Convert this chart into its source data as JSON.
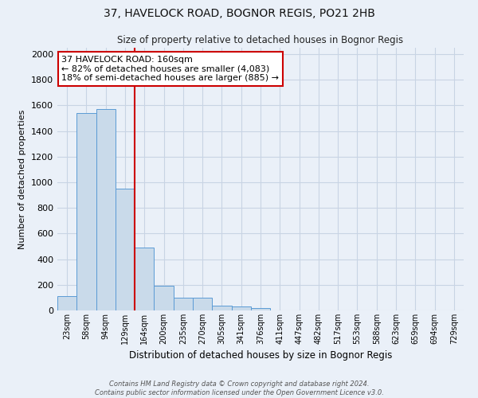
{
  "title_line1": "37, HAVELOCK ROAD, BOGNOR REGIS, PO21 2HB",
  "title_line2": "Size of property relative to detached houses in Bognor Regis",
  "xlabel": "Distribution of detached houses by size in Bognor Regis",
  "ylabel": "Number of detached properties",
  "footnote": "Contains HM Land Registry data © Crown copyright and database right 2024.\nContains public sector information licensed under the Open Government Licence v3.0.",
  "bin_labels": [
    "23sqm",
    "58sqm",
    "94sqm",
    "129sqm",
    "164sqm",
    "200sqm",
    "235sqm",
    "270sqm",
    "305sqm",
    "341sqm",
    "376sqm",
    "411sqm",
    "447sqm",
    "482sqm",
    "517sqm",
    "553sqm",
    "588sqm",
    "623sqm",
    "659sqm",
    "694sqm",
    "729sqm"
  ],
  "bar_values": [
    110,
    1540,
    1570,
    950,
    490,
    190,
    100,
    100,
    40,
    30,
    18,
    0,
    0,
    0,
    0,
    0,
    0,
    0,
    0,
    0,
    0
  ],
  "bar_color": "#c9daea",
  "bar_edge_color": "#5b9bd5",
  "grid_color": "#c8d4e4",
  "bg_color": "#eaf0f8",
  "vline_color": "#cc0000",
  "vline_index": 4,
  "annotation_text": "37 HAVELOCK ROAD: 160sqm\n← 82% of detached houses are smaller (4,083)\n18% of semi-detached houses are larger (885) →",
  "annotation_box_color": "#ffffff",
  "annotation_box_edge": "#cc0000",
  "ylim": [
    0,
    2050
  ],
  "yticks": [
    0,
    200,
    400,
    600,
    800,
    1000,
    1200,
    1400,
    1600,
    1800,
    2000
  ]
}
